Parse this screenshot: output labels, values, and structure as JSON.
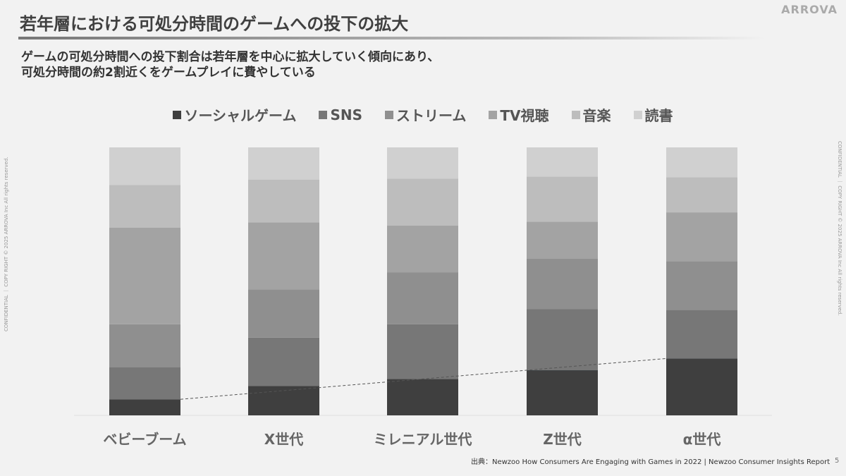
{
  "title": "若年層における可処分時間のゲームへの投下の拡大",
  "logo": "ARROVA",
  "subtitle": [
    "ゲームの可処分時間への投下割合は若年層を中心に拡大していく傾向にあり、",
    "可処分時間の約2割近くをゲームプレイに費やしている"
  ],
  "side_left": "CONFIDENTIAL ｜ COPY RIGHT © 2025 ARROVA Inc All rights reserved.",
  "side_right": "CONFIDENTIAL ｜ COPY RIGHT © 2025 ARROVA Inc All rights reserved.",
  "source": "出典：Newzoo How Consumers Are Engaging with Games in 2022 | Newzoo Consumer Insights Report",
  "page": "5",
  "chart_data": {
    "type": "bar",
    "stacked": true,
    "categories": [
      "ベビーブーム",
      "X世代",
      "ミレニアル世代",
      "Z世代",
      "α世代"
    ],
    "series": [
      {
        "name": "ソーシャルゲーム",
        "color": "#3f3f3f",
        "values": [
          6,
          11,
          14,
          17,
          21
        ]
      },
      {
        "name": "SNS",
        "color": "#777777",
        "values": [
          12,
          18,
          21,
          23,
          18
        ]
      },
      {
        "name": "ストリーム",
        "color": "#8f8f8f",
        "values": [
          16,
          18,
          20,
          19,
          18
        ]
      },
      {
        "name": "TV視聴",
        "color": "#a3a3a3",
        "values": [
          36,
          25,
          18,
          14,
          18
        ]
      },
      {
        "name": "音楽",
        "color": "#bdbdbd",
        "values": [
          16,
          16,
          18,
          17,
          13
        ]
      },
      {
        "name": "読書",
        "color": "#d0d0d0",
        "values": [
          14,
          12,
          12,
          11,
          11
        ]
      }
    ],
    "highlight": {
      "series": "ソーシャルゲーム",
      "categories": [
        "Z世代",
        "α世代"
      ],
      "color": "#19a5e0"
    },
    "unit": "%"
  }
}
